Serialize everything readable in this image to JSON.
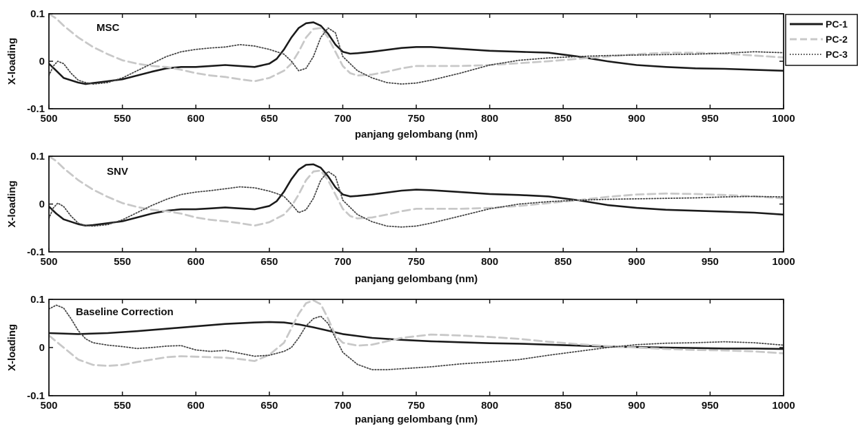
{
  "chart_data": [
    {
      "type": "line",
      "title": "MSC",
      "xlabel": "panjang gelombang (nm)",
      "ylabel": "X-loading",
      "xlim": [
        500,
        1000
      ],
      "ylim": [
        -0.1,
        0.1
      ],
      "xticks": [
        "500",
        "550",
        "600",
        "650",
        "700",
        "750",
        "800",
        "850",
        "900",
        "950",
        "1000"
      ],
      "yticks": [
        "0.1",
        "0",
        "-0.1"
      ],
      "series": [
        {
          "name": "PC-1",
          "color": "#1a1a1a",
          "style": "solid",
          "x": [
            500,
            505,
            510,
            520,
            525,
            530,
            540,
            550,
            560,
            570,
            580,
            590,
            600,
            610,
            620,
            630,
            640,
            650,
            655,
            660,
            665,
            670,
            675,
            680,
            685,
            690,
            695,
            700,
            705,
            710,
            720,
            740,
            750,
            760,
            780,
            800,
            820,
            840,
            860,
            880,
            900,
            920,
            940,
            960,
            980,
            1000
          ],
          "y": [
            -0.005,
            -0.02,
            -0.035,
            -0.045,
            -0.048,
            -0.046,
            -0.042,
            -0.038,
            -0.03,
            -0.022,
            -0.015,
            -0.012,
            -0.012,
            -0.01,
            -0.008,
            -0.01,
            -0.012,
            -0.005,
            0.005,
            0.025,
            0.05,
            0.07,
            0.08,
            0.082,
            0.075,
            0.058,
            0.035,
            0.02,
            0.016,
            0.017,
            0.02,
            0.028,
            0.03,
            0.03,
            0.026,
            0.022,
            0.02,
            0.018,
            0.01,
            0.0,
            -0.008,
            -0.012,
            -0.015,
            -0.016,
            -0.018,
            -0.02
          ]
        },
        {
          "name": "PC-2",
          "color": "#c8c8c8",
          "style": "dashed",
          "x": [
            500,
            505,
            510,
            520,
            530,
            540,
            550,
            560,
            570,
            580,
            590,
            600,
            610,
            620,
            630,
            640,
            650,
            660,
            665,
            670,
            675,
            680,
            685,
            690,
            695,
            700,
            705,
            710,
            720,
            730,
            740,
            750,
            760,
            780,
            800,
            820,
            840,
            860,
            880,
            900,
            920,
            940,
            960,
            980,
            1000
          ],
          "y": [
            0.1,
            0.09,
            0.075,
            0.05,
            0.03,
            0.015,
            0.002,
            -0.005,
            -0.01,
            -0.012,
            -0.018,
            -0.025,
            -0.03,
            -0.033,
            -0.038,
            -0.042,
            -0.035,
            -0.02,
            -0.005,
            0.02,
            0.05,
            0.068,
            0.07,
            0.05,
            0.02,
            -0.01,
            -0.025,
            -0.03,
            -0.028,
            -0.022,
            -0.015,
            -0.01,
            -0.01,
            -0.01,
            -0.008,
            -0.004,
            0.0,
            0.005,
            0.01,
            0.015,
            0.018,
            0.018,
            0.016,
            0.012,
            0.008
          ]
        },
        {
          "name": "PC-3",
          "color": "#444444",
          "style": "dotted",
          "x": [
            500,
            503,
            506,
            510,
            515,
            520,
            525,
            530,
            540,
            550,
            560,
            570,
            580,
            590,
            600,
            610,
            620,
            630,
            640,
            650,
            655,
            660,
            665,
            670,
            675,
            680,
            685,
            690,
            695,
            700,
            710,
            720,
            730,
            740,
            750,
            760,
            780,
            800,
            820,
            840,
            860,
            880,
            900,
            920,
            940,
            960,
            980,
            1000
          ],
          "y": [
            -0.03,
            -0.01,
            0.0,
            -0.005,
            -0.025,
            -0.04,
            -0.045,
            -0.048,
            -0.045,
            -0.035,
            -0.02,
            -0.005,
            0.01,
            0.02,
            0.025,
            0.028,
            0.03,
            0.035,
            0.032,
            0.025,
            0.02,
            0.015,
            0.0,
            -0.02,
            -0.015,
            0.01,
            0.05,
            0.07,
            0.06,
            0.01,
            -0.02,
            -0.035,
            -0.045,
            -0.048,
            -0.046,
            -0.04,
            -0.025,
            -0.008,
            0.002,
            0.007,
            0.01,
            0.012,
            0.013,
            0.014,
            0.015,
            0.017,
            0.02,
            0.018
          ]
        }
      ]
    },
    {
      "type": "line",
      "title": "SNV",
      "xlabel": "panjang gelombang (nm)",
      "ylabel": "X-loading",
      "xlim": [
        500,
        1000
      ],
      "ylim": [
        -0.1,
        0.1
      ],
      "xticks": [
        "500",
        "550",
        "600",
        "650",
        "700",
        "750",
        "800",
        "850",
        "900",
        "950",
        "1000"
      ],
      "yticks": [
        "0.1",
        "0",
        "-0.1"
      ],
      "series": [
        {
          "name": "PC-1",
          "color": "#1a1a1a",
          "style": "solid",
          "x": [
            500,
            505,
            510,
            520,
            525,
            530,
            540,
            550,
            560,
            570,
            580,
            590,
            600,
            610,
            620,
            630,
            640,
            650,
            655,
            660,
            665,
            670,
            675,
            680,
            685,
            690,
            695,
            700,
            705,
            710,
            720,
            740,
            750,
            760,
            780,
            800,
            820,
            840,
            860,
            880,
            900,
            920,
            940,
            960,
            980,
            1000
          ],
          "y": [
            -0.005,
            -0.02,
            -0.032,
            -0.042,
            -0.045,
            -0.044,
            -0.04,
            -0.036,
            -0.028,
            -0.02,
            -0.014,
            -0.011,
            -0.011,
            -0.009,
            -0.007,
            -0.009,
            -0.011,
            -0.004,
            0.006,
            0.026,
            0.052,
            0.072,
            0.082,
            0.083,
            0.076,
            0.058,
            0.035,
            0.02,
            0.016,
            0.017,
            0.02,
            0.028,
            0.03,
            0.029,
            0.025,
            0.021,
            0.019,
            0.016,
            0.008,
            -0.002,
            -0.008,
            -0.012,
            -0.014,
            -0.016,
            -0.018,
            -0.022
          ]
        },
        {
          "name": "PC-2",
          "color": "#c8c8c8",
          "style": "dashed",
          "x": [
            500,
            505,
            510,
            520,
            530,
            540,
            550,
            560,
            570,
            580,
            590,
            600,
            610,
            620,
            630,
            640,
            650,
            660,
            665,
            670,
            675,
            680,
            685,
            690,
            695,
            700,
            705,
            710,
            720,
            730,
            740,
            750,
            760,
            780,
            800,
            820,
            840,
            860,
            880,
            900,
            920,
            940,
            960,
            980,
            1000
          ],
          "y": [
            0.1,
            0.09,
            0.075,
            0.05,
            0.03,
            0.015,
            0.002,
            -0.006,
            -0.012,
            -0.015,
            -0.02,
            -0.028,
            -0.033,
            -0.036,
            -0.04,
            -0.045,
            -0.038,
            -0.022,
            -0.005,
            0.02,
            0.05,
            0.068,
            0.07,
            0.05,
            0.02,
            -0.01,
            -0.025,
            -0.03,
            -0.028,
            -0.022,
            -0.015,
            -0.01,
            -0.01,
            -0.01,
            -0.008,
            -0.004,
            0.002,
            0.008,
            0.015,
            0.02,
            0.022,
            0.021,
            0.019,
            0.016,
            0.012
          ]
        },
        {
          "name": "PC-3",
          "color": "#444444",
          "style": "dotted",
          "x": [
            500,
            503,
            506,
            510,
            515,
            520,
            525,
            530,
            540,
            550,
            560,
            570,
            580,
            590,
            600,
            610,
            620,
            630,
            640,
            650,
            655,
            660,
            665,
            670,
            675,
            680,
            685,
            690,
            695,
            700,
            710,
            720,
            730,
            740,
            750,
            760,
            780,
            800,
            820,
            840,
            860,
            880,
            900,
            920,
            940,
            960,
            980,
            1000
          ],
          "y": [
            -0.03,
            -0.008,
            0.002,
            -0.005,
            -0.025,
            -0.04,
            -0.045,
            -0.046,
            -0.043,
            -0.033,
            -0.018,
            -0.003,
            0.01,
            0.02,
            0.025,
            0.028,
            0.032,
            0.036,
            0.034,
            0.027,
            0.022,
            0.016,
            0.0,
            -0.018,
            -0.012,
            0.012,
            0.05,
            0.068,
            0.058,
            0.008,
            -0.022,
            -0.037,
            -0.046,
            -0.048,
            -0.046,
            -0.04,
            -0.025,
            -0.01,
            0.0,
            0.005,
            0.008,
            0.01,
            0.011,
            0.012,
            0.013,
            0.015,
            0.016,
            0.015
          ]
        }
      ]
    },
    {
      "type": "line",
      "title": "Baseline Correction",
      "xlabel": "panjang gelombang (nm)",
      "ylabel": "X-loading",
      "xlim": [
        500,
        1000
      ],
      "ylim": [
        -0.1,
        0.1
      ],
      "xticks": [
        "500",
        "550",
        "600",
        "650",
        "700",
        "750",
        "800",
        "850",
        "900",
        "950",
        "1000"
      ],
      "yticks": [
        "0.1",
        "0",
        "-0.1"
      ],
      "series": [
        {
          "name": "PC-1",
          "color": "#1a1a1a",
          "style": "solid",
          "x": [
            500,
            520,
            540,
            560,
            580,
            600,
            620,
            640,
            650,
            660,
            670,
            680,
            690,
            700,
            720,
            740,
            760,
            780,
            800,
            820,
            840,
            860,
            880,
            900,
            920,
            940,
            960,
            980,
            1000
          ],
          "y": [
            0.03,
            0.028,
            0.03,
            0.034,
            0.039,
            0.044,
            0.049,
            0.052,
            0.053,
            0.052,
            0.048,
            0.042,
            0.035,
            0.028,
            0.02,
            0.016,
            0.013,
            0.011,
            0.009,
            0.008,
            0.006,
            0.004,
            0.002,
            0.001,
            0.0,
            -0.001,
            -0.002,
            -0.002,
            -0.003
          ]
        },
        {
          "name": "PC-2",
          "color": "#c8c8c8",
          "style": "dashed",
          "x": [
            500,
            510,
            520,
            530,
            540,
            550,
            560,
            570,
            580,
            590,
            600,
            610,
            620,
            630,
            640,
            650,
            660,
            665,
            670,
            675,
            680,
            685,
            690,
            695,
            700,
            710,
            720,
            740,
            760,
            780,
            800,
            820,
            840,
            860,
            880,
            900,
            920,
            940,
            960,
            980,
            1000
          ],
          "y": [
            0.025,
            0.0,
            -0.025,
            -0.036,
            -0.038,
            -0.036,
            -0.03,
            -0.025,
            -0.02,
            -0.018,
            -0.019,
            -0.02,
            -0.021,
            -0.024,
            -0.028,
            -0.015,
            0.01,
            0.04,
            0.07,
            0.092,
            0.098,
            0.09,
            0.06,
            0.025,
            0.01,
            0.004,
            0.006,
            0.02,
            0.027,
            0.025,
            0.022,
            0.018,
            0.012,
            0.007,
            0.003,
            0.0,
            -0.003,
            -0.005,
            -0.006,
            -0.008,
            -0.012
          ]
        },
        {
          "name": "PC-3",
          "color": "#444444",
          "style": "dotted",
          "x": [
            500,
            505,
            510,
            515,
            520,
            525,
            530,
            540,
            550,
            560,
            570,
            580,
            590,
            600,
            610,
            620,
            630,
            640,
            650,
            660,
            665,
            670,
            675,
            680,
            685,
            690,
            695,
            700,
            710,
            720,
            730,
            740,
            760,
            780,
            800,
            820,
            840,
            860,
            880,
            900,
            920,
            940,
            960,
            980,
            1000
          ],
          "y": [
            0.08,
            0.088,
            0.082,
            0.06,
            0.035,
            0.018,
            0.01,
            0.005,
            0.002,
            -0.002,
            0.0,
            0.003,
            0.004,
            -0.005,
            -0.008,
            -0.006,
            -0.012,
            -0.018,
            -0.016,
            -0.008,
            0.0,
            0.02,
            0.045,
            0.06,
            0.065,
            0.05,
            0.02,
            -0.01,
            -0.035,
            -0.046,
            -0.046,
            -0.044,
            -0.04,
            -0.034,
            -0.03,
            -0.025,
            -0.016,
            -0.008,
            0.0,
            0.006,
            0.009,
            0.01,
            0.012,
            0.01,
            0.005
          ]
        }
      ]
    }
  ]
}
